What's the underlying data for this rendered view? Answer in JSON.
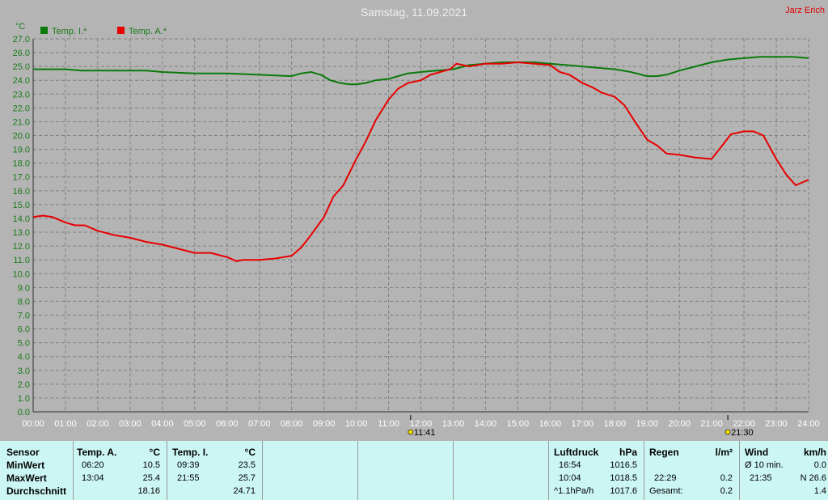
{
  "header": {
    "title": "Samstag, 11.09.2021",
    "author": "Jarz Erich",
    "y_unit": "°C"
  },
  "colors": {
    "temp_inside": "#0a7a0a",
    "temp_outside": "#e80000",
    "background": "#b4b4b4",
    "grid": "#808080",
    "stats_background": "#ccf6f4"
  },
  "chart_data": {
    "type": "line",
    "title": "Samstag, 11.09.2021",
    "ylabel": "°C",
    "ylim": [
      0,
      27
    ],
    "xlim": [
      0,
      24
    ],
    "y_ticks": [
      "0.0",
      "1.0",
      "2.0",
      "3.0",
      "4.0",
      "5.0",
      "6.0",
      "7.0",
      "8.0",
      "9.0",
      "10.0",
      "11.0",
      "12.0",
      "13.0",
      "14.0",
      "15.0",
      "16.0",
      "17.0",
      "18.0",
      "19.0",
      "20.0",
      "21.0",
      "22.0",
      "23.0",
      "24.0",
      "25.0",
      "26.0",
      "27.0"
    ],
    "x_ticks": [
      "00:00",
      "01:00",
      "02:00",
      "03:00",
      "04:00",
      "05:00",
      "06:00",
      "07:00",
      "08:00",
      "09:00",
      "10:00",
      "11:00",
      "12:00",
      "13:00",
      "14:00",
      "15:00",
      "16:00",
      "17:00",
      "18:00",
      "19:00",
      "20:00",
      "21:00",
      "22:00",
      "23:00",
      "24:00"
    ],
    "grid": true,
    "legend_position": "top-left",
    "series": [
      {
        "name": "Temp. I.*",
        "color": "#0a7a0a",
        "x": [
          0,
          1,
          1.5,
          2,
          3,
          3.5,
          4,
          5,
          6,
          7,
          8,
          8.3,
          8.6,
          8.9,
          9.2,
          9.5,
          9.8,
          10,
          10.3,
          10.6,
          11,
          11.3,
          11.6,
          12,
          12.5,
          13,
          13.5,
          14,
          14.5,
          15,
          15.5,
          16,
          16.5,
          17,
          17.5,
          18,
          18.5,
          19,
          19.3,
          19.6,
          20,
          20.5,
          21,
          21.5,
          22,
          22.5,
          23,
          23.5,
          24
        ],
        "values": [
          24.8,
          24.8,
          24.7,
          24.7,
          24.7,
          24.7,
          24.6,
          24.5,
          24.5,
          24.4,
          24.3,
          24.5,
          24.6,
          24.4,
          24.0,
          23.8,
          23.7,
          23.7,
          23.8,
          24.0,
          24.1,
          24.3,
          24.5,
          24.6,
          24.7,
          24.8,
          25.1,
          25.2,
          25.3,
          25.3,
          25.3,
          25.2,
          25.1,
          25.0,
          24.9,
          24.8,
          24.6,
          24.3,
          24.3,
          24.4,
          24.7,
          25.0,
          25.3,
          25.5,
          25.6,
          25.7,
          25.7,
          25.7,
          25.6
        ]
      },
      {
        "name": "Temp. A.*",
        "color": "#e80000",
        "x": [
          0,
          0.3,
          0.6,
          1,
          1.3,
          1.6,
          2,
          2.5,
          3,
          3.5,
          4,
          4.5,
          5,
          5.5,
          6,
          6.3,
          6.5,
          7,
          7.5,
          8,
          8.3,
          8.6,
          9,
          9.3,
          9.6,
          10,
          10.3,
          10.6,
          11,
          11.3,
          11.6,
          12,
          12.3,
          12.6,
          12.9,
          13.1,
          13.5,
          14,
          14.5,
          15,
          15.5,
          16,
          16.3,
          16.6,
          17,
          17.3,
          17.6,
          18,
          18.3,
          18.6,
          19,
          19.3,
          19.6,
          20,
          20.5,
          21,
          21.3,
          21.6,
          22,
          22.3,
          22.6,
          23,
          23.3,
          23.6,
          24
        ],
        "values": [
          14.1,
          14.2,
          14.1,
          13.7,
          13.5,
          13.5,
          13.1,
          12.8,
          12.6,
          12.3,
          12.1,
          11.8,
          11.5,
          11.5,
          11.2,
          10.9,
          11.0,
          11.0,
          11.1,
          11.3,
          11.9,
          12.8,
          14.1,
          15.6,
          16.4,
          18.3,
          19.6,
          21.1,
          22.6,
          23.4,
          23.8,
          24.0,
          24.4,
          24.6,
          24.8,
          25.2,
          25.0,
          25.2,
          25.2,
          25.3,
          25.2,
          25.1,
          24.6,
          24.4,
          23.8,
          23.5,
          23.1,
          22.8,
          22.2,
          21.1,
          19.7,
          19.3,
          18.7,
          18.6,
          18.4,
          18.3,
          19.2,
          20.1,
          20.3,
          20.3,
          20.0,
          18.3,
          17.2,
          16.4,
          16.8
        ]
      }
    ],
    "markers": [
      {
        "label": "11:41",
        "x": 11.683
      },
      {
        "label": "21:30",
        "x": 21.5
      }
    ]
  },
  "stats": {
    "sensor": {
      "header": "Sensor",
      "min": "MinWert",
      "max": "MaxWert",
      "avg": "Durchschnitt"
    },
    "temp_a": {
      "header": "Temp. A.",
      "unit": "°C",
      "min_time": "06:20",
      "min_value": "10.5",
      "max_time": "13:04",
      "max_value": "25.4",
      "avg_value": "18.16"
    },
    "temp_i": {
      "header": "Temp. I.",
      "unit": "°C",
      "min_time": "09:39",
      "min_value": "23.5",
      "max_time": "21:55",
      "max_value": "25.7",
      "avg_value": "24.71"
    },
    "pressure": {
      "header": "Luftdruck",
      "unit": "hPa",
      "min_time": "16:54",
      "min_value": "1016.5",
      "max_time": "10:04",
      "max_value": "1018.5",
      "trend_label": "^1.1hPa/h",
      "trend_value": "1017.6"
    },
    "rain": {
      "header": "Regen",
      "unit": "l/m²",
      "max_time": "22:29",
      "max_value": "0.2",
      "total_label": "Gesamt:",
      "total_value": "0.2"
    },
    "wind": {
      "header": "Wind",
      "unit": "km/h",
      "min_label": "Ø 10 min.",
      "min_value": "0.0",
      "max_time": "21:35",
      "max_value": "N 26.6",
      "avg_value": "1.4"
    }
  }
}
